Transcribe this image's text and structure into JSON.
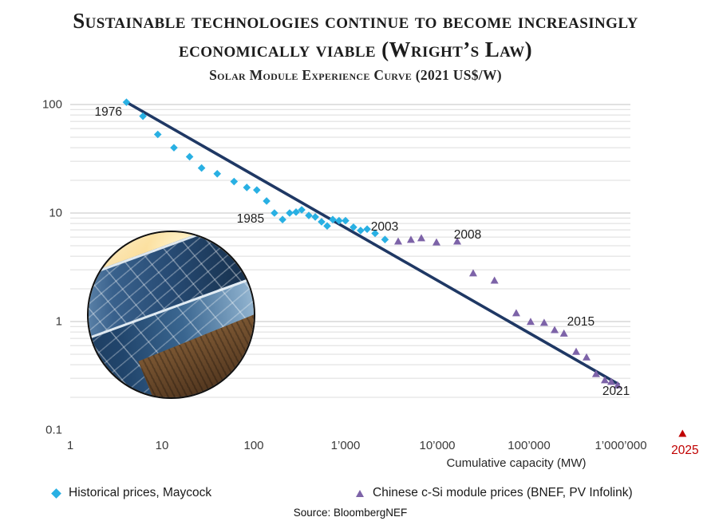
{
  "title": {
    "lines": [
      "Sustainable technologies continue to become increasingly",
      "economically viable (Wright’s Law)"
    ]
  },
  "subtitle": "Solar Module Experience Curve (2021 US$/W)",
  "source": "Source: BloombergNEF",
  "colors": {
    "trend_line": "#1f3864",
    "historical_series": "#29b0e3",
    "chinese_series": "#7d63a8",
    "forecast": "#c00000",
    "gridline_minor": "#dcdcdc",
    "gridline_major": "#cfcfcf",
    "annotation_text": "#1f1f1f"
  },
  "legend": {
    "items": [
      {
        "label": "Historical prices, Maycock",
        "marker": "diamond",
        "color": "#29b0e3"
      },
      {
        "label": "Chinese c-Si module prices (BNEF, PV Infolink)",
        "marker": "triangle",
        "color": "#7d63a8"
      }
    ]
  },
  "chart_data": {
    "type": "scatter",
    "title": "Solar Module Experience Curve (2021 US$/W)",
    "xlabel": "Cumulative capacity (MW)",
    "ylabel": "",
    "log_x": true,
    "log_y": true,
    "xlim": [
      1,
      1000000
    ],
    "ylim": [
      0.1,
      100
    ],
    "grid": "horizontal-log",
    "legend_position": "bottom",
    "x_ticks": [
      {
        "value": 1,
        "label": "1"
      },
      {
        "value": 10,
        "label": "10"
      },
      {
        "value": 100,
        "label": "100"
      },
      {
        "value": 1000,
        "label": "1’000"
      },
      {
        "value": 10000,
        "label": "10’000"
      },
      {
        "value": 100000,
        "label": "100’000"
      },
      {
        "value": 1000000,
        "label": "1’000’000"
      }
    ],
    "y_ticks": [
      {
        "value": 100,
        "label": "100"
      },
      {
        "value": 10,
        "label": "10"
      },
      {
        "value": 1,
        "label": "1"
      },
      {
        "value": 0.1,
        "label": "0.1"
      }
    ],
    "series": [
      {
        "name": "Historical prices, Maycock",
        "marker": "diamond",
        "color": "#29b0e3",
        "units": "[cumulative_MW, 2021_USD_per_W]",
        "points": [
          [
            4.1,
            105
          ],
          [
            6.2,
            78
          ],
          [
            9,
            53
          ],
          [
            13.5,
            40
          ],
          [
            20,
            33
          ],
          [
            27,
            26
          ],
          [
            40,
            23
          ],
          [
            61,
            19.5
          ],
          [
            84,
            17.2
          ],
          [
            108,
            16.3
          ],
          [
            138,
            12.9
          ],
          [
            168,
            10
          ],
          [
            206,
            8.7
          ],
          [
            246,
            10
          ],
          [
            289,
            10.2
          ],
          [
            333,
            10.7
          ],
          [
            398,
            9.5
          ],
          [
            468,
            9.2
          ],
          [
            548,
            8.3
          ],
          [
            631,
            7.6
          ],
          [
            726,
            8.7
          ],
          [
            850,
            8.5
          ],
          [
            1000,
            8.5
          ],
          [
            1220,
            7.4
          ],
          [
            1460,
            6.9
          ],
          [
            1720,
            7.1
          ],
          [
            2100,
            6.5
          ],
          [
            2690,
            5.7
          ]
        ]
      },
      {
        "name": "Chinese c-Si module prices (BNEF, PV Infolink)",
        "marker": "triangle",
        "color": "#7d63a8",
        "units": "[cumulative_MW, 2021_USD_per_W]",
        "points": [
          [
            3750,
            5.5
          ],
          [
            5160,
            5.7
          ],
          [
            6700,
            5.9
          ],
          [
            9800,
            5.4
          ],
          [
            16500,
            5.5
          ],
          [
            24600,
            2.8
          ],
          [
            42000,
            2.4
          ],
          [
            72500,
            1.2
          ],
          [
            104000,
            1.0
          ],
          [
            146000,
            0.98
          ],
          [
            190000,
            0.84
          ],
          [
            240000,
            0.78
          ],
          [
            326000,
            0.53
          ],
          [
            423000,
            0.47
          ],
          [
            537000,
            0.33
          ],
          [
            670000,
            0.29
          ],
          [
            787000,
            0.28
          ],
          [
            923000,
            0.26
          ]
        ]
      },
      {
        "name": "2025 (forecast)",
        "marker": "triangle",
        "color": "#c00000",
        "in_legend": false,
        "units": "[cumulative_MW, 2021_USD_per_W]",
        "points": [
          [
            4700000,
            0.093
          ]
        ]
      }
    ],
    "trend_line": {
      "color": "#1f3864",
      "from": [
        4.1,
        105
      ],
      "to": [
        940000,
        0.265
      ]
    },
    "annotations": [
      {
        "label": "1976",
        "mw": 2.6,
        "price": 84
      },
      {
        "label": "1985",
        "mw": 92,
        "price": 8.7
      },
      {
        "label": "2003",
        "mw": 2670,
        "price": 7.4
      },
      {
        "label": "2008",
        "mw": 21400,
        "price": 6.2
      },
      {
        "label": "2015",
        "mw": 367000,
        "price": 0.98
      },
      {
        "label": "2021",
        "mw": 888000,
        "price": 0.225
      },
      {
        "label": "2025",
        "mw": 5000000,
        "price": 0.064,
        "color": "#c00000"
      }
    ]
  }
}
